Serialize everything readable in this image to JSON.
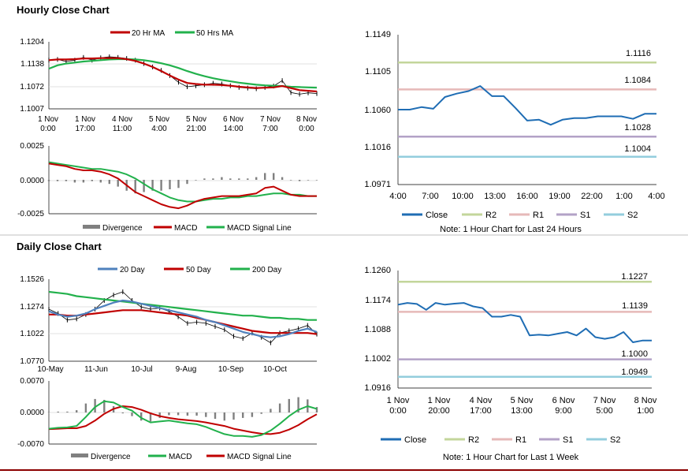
{
  "colors": {
    "close": "#1f6db4",
    "r2": "#c3d69b",
    "r1": "#e6b9b8",
    "s1": "#b3a2c7",
    "s2": "#93cddd",
    "ma20": "#c00000",
    "ma50": "#22b14c",
    "ma20d": "#4f81bd",
    "ma50d": "#c00000",
    "ma200d": "#22b14c",
    "div": "#808080",
    "sep": "#8b0000"
  },
  "chart_data": [
    {
      "id": "hourly_price",
      "type": "line",
      "title": "Hourly Close Chart",
      "ylim": [
        1.1007,
        1.1204
      ],
      "yticks": [
        "1.1204",
        "1.1138",
        "1.1072",
        "1.1007"
      ],
      "xticks": [
        [
          "1 Nov",
          "0:00"
        ],
        [
          "1 Nov",
          "17:00"
        ],
        [
          "4 Nov",
          "11:00"
        ],
        [
          "5 Nov",
          "4:00"
        ],
        [
          "5 Nov",
          "21:00"
        ],
        [
          "6 Nov",
          "14:00"
        ],
        [
          "7 Nov",
          "7:00"
        ],
        [
          "8 Nov",
          "0:00"
        ]
      ],
      "legend": [
        "20 Hr MA",
        "50 Hrs MA"
      ],
      "series": [
        {
          "name": "Close",
          "values": [
            1.115,
            1.1152,
            1.1146,
            1.115,
            1.1158,
            1.115,
            1.1157,
            1.116,
            1.1158,
            1.1155,
            1.115,
            1.114,
            1.113,
            1.112,
            1.1105,
            1.1085,
            1.1072,
            1.1075,
            1.1078,
            1.1082,
            1.108,
            1.1075,
            1.107,
            1.1068,
            1.1066,
            1.107,
            1.1074,
            1.109,
            1.1055,
            1.105,
            1.1054,
            1.1052
          ]
        },
        {
          "name": "20 Hr MA",
          "values": [
            1.115,
            1.1152,
            1.1152,
            1.1153,
            1.1155,
            1.1155,
            1.1156,
            1.1156,
            1.1156,
            1.1153,
            1.1148,
            1.114,
            1.113,
            1.1118,
            1.1105,
            1.1093,
            1.1083,
            1.108,
            1.1078,
            1.1078,
            1.1077,
            1.1075,
            1.1072,
            1.107,
            1.1068,
            1.1069,
            1.107,
            1.1074,
            1.1068,
            1.1062,
            1.106,
            1.1058
          ]
        },
        {
          "name": "50 Hrs MA",
          "values": [
            1.1125,
            1.1135,
            1.114,
            1.1143,
            1.1146,
            1.1148,
            1.115,
            1.1152,
            1.1153,
            1.1153,
            1.1152,
            1.115,
            1.1146,
            1.1141,
            1.1135,
            1.1127,
            1.1118,
            1.111,
            1.1103,
            1.1097,
            1.1092,
            1.1088,
            1.1084,
            1.1081,
            1.1078,
            1.1076,
            1.1075,
            1.1074,
            1.1072,
            1.1071,
            1.107,
            1.1069
          ]
        }
      ]
    },
    {
      "id": "hourly_macd",
      "type": "line",
      "ylim": [
        -0.0025,
        0.0025
      ],
      "yticks": [
        "0.0025",
        "0.0000",
        "-0.0025"
      ],
      "legend": [
        "Divergence",
        "MACD",
        "MACD Signal Line"
      ],
      "series": [
        {
          "name": "MACD",
          "values": [
            0.0012,
            0.0011,
            0.001,
            0.0008,
            0.0007,
            0.0007,
            0.0006,
            0.0004,
            0.0001,
            -0.0004,
            -0.0009,
            -0.0012,
            -0.0015,
            -0.0018,
            -0.002,
            -0.0021,
            -0.0019,
            -0.0016,
            -0.0014,
            -0.0013,
            -0.0012,
            -0.0012,
            -0.0012,
            -0.0011,
            -0.001,
            -0.0006,
            -0.0005,
            -0.0008,
            -0.0011,
            -0.0012,
            -0.0012,
            -0.0012
          ]
        },
        {
          "name": "MACD Signal Line",
          "values": [
            0.0013,
            0.0012,
            0.0011,
            0.001,
            0.0009,
            0.0008,
            0.0008,
            0.0007,
            0.0006,
            0.0004,
            0.0001,
            -0.0003,
            -0.0007,
            -0.001,
            -0.0013,
            -0.0015,
            -0.0016,
            -0.0016,
            -0.0015,
            -0.0014,
            -0.0014,
            -0.0013,
            -0.0013,
            -0.0012,
            -0.0012,
            -0.0011,
            -0.001,
            -0.001,
            -0.0011,
            -0.0011,
            -0.0012,
            -0.0012
          ]
        },
        {
          "name": "Divergence",
          "values": [
            -0.0001,
            -0.0001,
            -0.0001,
            -0.0002,
            -0.0002,
            -0.0001,
            -0.0002,
            -0.0003,
            -0.0005,
            -0.0008,
            -0.001,
            -0.0009,
            -0.0008,
            -0.0008,
            -0.0007,
            -0.0006,
            -0.0003,
            0.0,
            0.0001,
            0.0001,
            0.0002,
            0.0001,
            0.0001,
            0.0001,
            0.0002,
            0.0005,
            0.0005,
            0.0002,
            0.0,
            -0.0001,
            0.0,
            0.0
          ]
        }
      ]
    },
    {
      "id": "hourly_24h",
      "type": "line",
      "note": "Note: 1 Hour Chart for Last 24 Hours",
      "ylim": [
        1.0971,
        1.1149
      ],
      "yticks": [
        "1.1149",
        "1.1105",
        "1.1060",
        "1.1016",
        "1.0971"
      ],
      "xticks": [
        "4:00",
        "7:00",
        "10:00",
        "13:00",
        "16:00",
        "19:00",
        "22:00",
        "1:00",
        "4:00"
      ],
      "legend": [
        "Close",
        "R2",
        "R1",
        "S1",
        "S2"
      ],
      "levels": [
        {
          "name": "R2",
          "value": 1.1116,
          "label": "1.1116"
        },
        {
          "name": "R1",
          "value": 1.1084,
          "label": "1.1084"
        },
        {
          "name": "S1",
          "value": 1.1028,
          "label": "1.1028"
        },
        {
          "name": "S2",
          "value": 1.1004,
          "label": "1.1004"
        }
      ],
      "series": [
        {
          "name": "Close",
          "values": [
            1.106,
            1.106,
            1.1063,
            1.1061,
            1.1075,
            1.1079,
            1.1082,
            1.1088,
            1.1076,
            1.1076,
            1.1062,
            1.1047,
            1.1048,
            1.1042,
            1.1048,
            1.105,
            1.105,
            1.1052,
            1.1052,
            1.1052,
            1.1049,
            1.1055,
            1.1055
          ]
        }
      ]
    },
    {
      "id": "daily_price",
      "type": "line",
      "title": "Daily Close Chart",
      "ylim": [
        1.077,
        1.1526
      ],
      "yticks": [
        "1.1526",
        "1.1274",
        "1.1022",
        "1.0770"
      ],
      "xticks": [
        "10-May",
        "11-Jun",
        "10-Jul",
        "9-Aug",
        "10-Sep",
        "10-Oct"
      ],
      "legend": [
        "20 Day",
        "50 Day",
        "200 Day"
      ],
      "series": [
        {
          "name": "Close",
          "values": [
            1.125,
            1.121,
            1.115,
            1.116,
            1.12,
            1.125,
            1.133,
            1.138,
            1.141,
            1.133,
            1.127,
            1.125,
            1.126,
            1.123,
            1.118,
            1.112,
            1.113,
            1.112,
            1.109,
            1.106,
            1.1,
            1.098,
            1.103,
            1.099,
            1.094,
            1.103,
            1.105,
            1.107,
            1.11,
            1.102
          ]
        },
        {
          "name": "20 Day",
          "values": [
            1.123,
            1.12,
            1.118,
            1.119,
            1.121,
            1.125,
            1.128,
            1.131,
            1.133,
            1.132,
            1.13,
            1.128,
            1.126,
            1.124,
            1.122,
            1.12,
            1.118,
            1.115,
            1.113,
            1.11,
            1.107,
            1.104,
            1.102,
            1.1,
            1.099,
            1.1,
            1.102,
            1.105,
            1.107,
            1.104
          ]
        },
        {
          "name": "50 Day",
          "values": [
            1.12,
            1.12,
            1.119,
            1.119,
            1.12,
            1.121,
            1.122,
            1.123,
            1.124,
            1.124,
            1.124,
            1.123,
            1.122,
            1.121,
            1.12,
            1.119,
            1.117,
            1.115,
            1.113,
            1.111,
            1.109,
            1.107,
            1.105,
            1.104,
            1.103,
            1.103,
            1.103,
            1.103,
            1.103,
            1.102
          ]
        },
        {
          "name": "200 Day",
          "values": [
            1.141,
            1.14,
            1.139,
            1.137,
            1.136,
            1.135,
            1.134,
            1.133,
            1.132,
            1.131,
            1.13,
            1.129,
            1.128,
            1.127,
            1.126,
            1.125,
            1.124,
            1.123,
            1.122,
            1.121,
            1.12,
            1.119,
            1.119,
            1.118,
            1.117,
            1.117,
            1.116,
            1.116,
            1.115,
            1.115
          ]
        }
      ]
    },
    {
      "id": "daily_macd",
      "type": "line",
      "ylim": [
        -0.007,
        0.007
      ],
      "yticks": [
        "0.0070",
        "0.0000",
        "-0.0070"
      ],
      "legend": [
        "Divergence",
        "MACD",
        "MACD Signal Line"
      ],
      "series": [
        {
          "name": "MACD",
          "values": [
            -0.0036,
            -0.0034,
            -0.0033,
            -0.003,
            -0.001,
            0.0012,
            0.0025,
            0.0022,
            0.0012,
            0.0004,
            -0.0012,
            -0.0022,
            -0.002,
            -0.0018,
            -0.0021,
            -0.0024,
            -0.0026,
            -0.0032,
            -0.004,
            -0.0048,
            -0.0052,
            -0.0052,
            -0.0054,
            -0.005,
            -0.004,
            -0.0025,
            -0.0008,
            0.0006,
            0.0014,
            0.0008
          ]
        },
        {
          "name": "MACD Signal Line",
          "values": [
            -0.0037,
            -0.0036,
            -0.0035,
            -0.0035,
            -0.003,
            -0.0018,
            -0.0003,
            0.0008,
            0.0014,
            0.0012,
            0.0006,
            -0.0002,
            -0.0008,
            -0.0012,
            -0.0015,
            -0.0017,
            -0.0019,
            -0.0022,
            -0.0026,
            -0.003,
            -0.0036,
            -0.004,
            -0.0044,
            -0.0047,
            -0.0048,
            -0.0045,
            -0.0038,
            -0.0028,
            -0.0015,
            -0.0004
          ]
        },
        {
          "name": "Divergence",
          "values": [
            0.0001,
            0.0002,
            0.0002,
            0.0005,
            0.002,
            0.003,
            0.0028,
            0.0014,
            -0.0002,
            -0.0008,
            -0.0018,
            -0.002,
            -0.0012,
            -0.0006,
            -0.0006,
            -0.0007,
            -0.0007,
            -0.001,
            -0.0014,
            -0.0018,
            -0.0016,
            -0.0012,
            -0.001,
            -0.0003,
            0.0008,
            0.002,
            0.003,
            0.0034,
            0.0029,
            0.0012
          ]
        }
      ]
    },
    {
      "id": "hourly_week",
      "type": "line",
      "note": "Note: 1 Hour Chart for Last 1 Week",
      "ylim": [
        1.0916,
        1.126
      ],
      "yticks": [
        "1.1260",
        "1.1174",
        "1.1088",
        "1.1002",
        "1.0916"
      ],
      "xticks": [
        [
          "1 Nov",
          "0:00"
        ],
        [
          "1 Nov",
          "20:00"
        ],
        [
          "4 Nov",
          "17:00"
        ],
        [
          "5 Nov",
          "13:00"
        ],
        [
          "6 Nov",
          "9:00"
        ],
        [
          "7 Nov",
          "5:00"
        ],
        [
          "8 Nov",
          "1:00"
        ]
      ],
      "legend": [
        "Close",
        "R2",
        "R1",
        "S1",
        "S2"
      ],
      "levels": [
        {
          "name": "R2",
          "value": 1.1227,
          "label": "1.1227"
        },
        {
          "name": "R1",
          "value": 1.1139,
          "label": "1.1139"
        },
        {
          "name": "S1",
          "value": 1.1,
          "label": "1.1000"
        },
        {
          "name": "S2",
          "value": 1.0949,
          "label": "1.0949"
        }
      ],
      "series": [
        {
          "name": "Close",
          "values": [
            1.116,
            1.1165,
            1.1162,
            1.1145,
            1.1165,
            1.116,
            1.1163,
            1.1165,
            1.1155,
            1.115,
            1.1125,
            1.1125,
            1.113,
            1.1125,
            1.107,
            1.1072,
            1.107,
            1.1075,
            1.108,
            1.107,
            1.109,
            1.1065,
            1.106,
            1.1065,
            1.108,
            1.105,
            1.1055,
            1.1055
          ]
        }
      ]
    }
  ]
}
